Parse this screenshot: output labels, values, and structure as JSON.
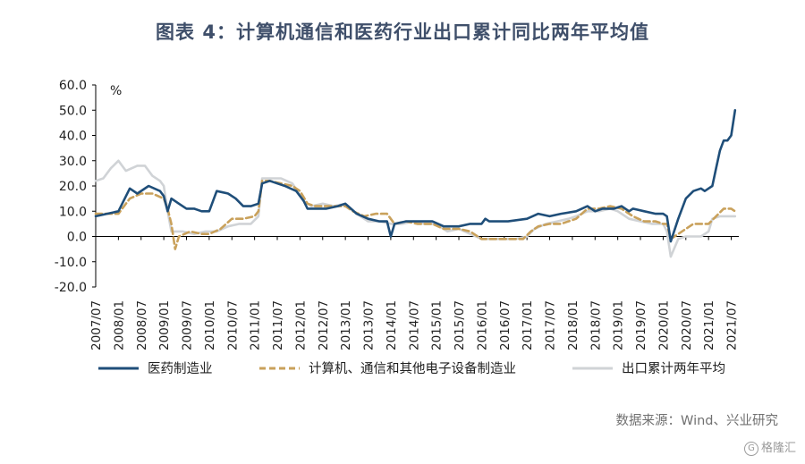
{
  "title": "图表 4：计算机通信和医药行业出口累计同比两年平均值",
  "source": "数据来源：Wind、兴业研究",
  "watermark": "格隆汇",
  "chart_data": {
    "type": "line",
    "ylabel": "%",
    "ylim": [
      -20,
      60
    ],
    "yticks": [
      -20,
      -10,
      0,
      10,
      20,
      30,
      40,
      50,
      60
    ],
    "ytick_labels": [
      "-20.0",
      "-10.0",
      "0.0",
      "10.0",
      "20.0",
      "30.0",
      "40.0",
      "50.0",
      "60.0"
    ],
    "xlim": [
      "2007-07",
      "2021-09"
    ],
    "xticks": [
      "2007/07",
      "2008/01",
      "2008/07",
      "2009/01",
      "2009/07",
      "2010/01",
      "2010/07",
      "2011/01",
      "2011/07",
      "2012/01",
      "2012/07",
      "2013/01",
      "2013/07",
      "2014/01",
      "2014/07",
      "2015/01",
      "2015/07",
      "2016/01",
      "2016/07",
      "2017/01",
      "2017/07",
      "2018/01",
      "2018/07",
      "2019/01",
      "2019/07",
      "2020/01",
      "2020/07",
      "2021/01",
      "2021/07"
    ],
    "grid": false,
    "legend_position": "bottom",
    "series": [
      {
        "name": "医药制造业",
        "color": "#1f4e79",
        "style": "solid",
        "points": [
          [
            "2007-07",
            8
          ],
          [
            "2007-10",
            9
          ],
          [
            "2008-01",
            10
          ],
          [
            "2008-04",
            19
          ],
          [
            "2008-06",
            17
          ],
          [
            "2008-09",
            20
          ],
          [
            "2008-12",
            18
          ],
          [
            "2009-01",
            16
          ],
          [
            "2009-02",
            10
          ],
          [
            "2009-03",
            15
          ],
          [
            "2009-05",
            13
          ],
          [
            "2009-07",
            11
          ],
          [
            "2009-09",
            11
          ],
          [
            "2009-11",
            10
          ],
          [
            "2010-01",
            10
          ],
          [
            "2010-03",
            18
          ],
          [
            "2010-06",
            17
          ],
          [
            "2010-08",
            15
          ],
          [
            "2010-10",
            12
          ],
          [
            "2010-12",
            12
          ],
          [
            "2011-02",
            13
          ],
          [
            "2011-03",
            21
          ],
          [
            "2011-05",
            22
          ],
          [
            "2011-07",
            21
          ],
          [
            "2011-09",
            20
          ],
          [
            "2011-12",
            18
          ],
          [
            "2012-02",
            14
          ],
          [
            "2012-03",
            11
          ],
          [
            "2012-05",
            11
          ],
          [
            "2012-08",
            11
          ],
          [
            "2012-11",
            12
          ],
          [
            "2013-01",
            13
          ],
          [
            "2013-04",
            9
          ],
          [
            "2013-07",
            7
          ],
          [
            "2013-10",
            6
          ],
          [
            "2013-12",
            6
          ],
          [
            "2014-01",
            0
          ],
          [
            "2014-02",
            5
          ],
          [
            "2014-05",
            6
          ],
          [
            "2014-08",
            6
          ],
          [
            "2014-12",
            6
          ],
          [
            "2015-03",
            4
          ],
          [
            "2015-07",
            4
          ],
          [
            "2015-10",
            5
          ],
          [
            "2015-12",
            5
          ],
          [
            "2016-01",
            5
          ],
          [
            "2016-02",
            7
          ],
          [
            "2016-03",
            6
          ],
          [
            "2016-08",
            6
          ],
          [
            "2017-01",
            7
          ],
          [
            "2017-04",
            9
          ],
          [
            "2017-07",
            8
          ],
          [
            "2017-10",
            9
          ],
          [
            "2018-02",
            10
          ],
          [
            "2018-05",
            12
          ],
          [
            "2018-07",
            10
          ],
          [
            "2018-09",
            11
          ],
          [
            "2018-12",
            11
          ],
          [
            "2019-02",
            12
          ],
          [
            "2019-04",
            10
          ],
          [
            "2019-05",
            11
          ],
          [
            "2019-08",
            10
          ],
          [
            "2019-11",
            9
          ],
          [
            "2020-01",
            9
          ],
          [
            "2020-02",
            8
          ],
          [
            "2020-03",
            -2
          ],
          [
            "2020-05",
            7
          ],
          [
            "2020-07",
            15
          ],
          [
            "2020-09",
            18
          ],
          [
            "2020-11",
            19
          ],
          [
            "2020-12",
            18
          ],
          [
            "2021-01",
            19
          ],
          [
            "2021-02",
            20
          ],
          [
            "2021-03",
            27
          ],
          [
            "2021-04",
            34
          ],
          [
            "2021-05",
            38
          ],
          [
            "2021-06",
            38
          ],
          [
            "2021-07",
            40
          ],
          [
            "2021-08",
            50
          ]
        ]
      },
      {
        "name": "计算机、通信和其他电子设备制造业",
        "color": "#c9a15b",
        "style": "dashed",
        "points": [
          [
            "2007-07",
            9
          ],
          [
            "2007-10",
            9
          ],
          [
            "2008-01",
            9
          ],
          [
            "2008-04",
            15
          ],
          [
            "2008-07",
            17
          ],
          [
            "2008-10",
            17
          ],
          [
            "2009-01",
            15
          ],
          [
            "2009-02",
            11
          ],
          [
            "2009-03",
            5
          ],
          [
            "2009-04",
            -5
          ],
          [
            "2009-05",
            0
          ],
          [
            "2009-08",
            2
          ],
          [
            "2009-11",
            1
          ],
          [
            "2010-01",
            1
          ],
          [
            "2010-04",
            3
          ],
          [
            "2010-07",
            7
          ],
          [
            "2010-10",
            7
          ],
          [
            "2011-01",
            8
          ],
          [
            "2011-02",
            10
          ],
          [
            "2011-03",
            22
          ],
          [
            "2011-05",
            22
          ],
          [
            "2011-08",
            21
          ],
          [
            "2011-11",
            20
          ],
          [
            "2012-01",
            18
          ],
          [
            "2012-03",
            13
          ],
          [
            "2012-05",
            12
          ],
          [
            "2012-08",
            12
          ],
          [
            "2012-11",
            12
          ],
          [
            "2013-01",
            12
          ],
          [
            "2013-03",
            10
          ],
          [
            "2013-06",
            8
          ],
          [
            "2013-09",
            9
          ],
          [
            "2013-12",
            9
          ],
          [
            "2014-02",
            5
          ],
          [
            "2014-05",
            6
          ],
          [
            "2014-08",
            5
          ],
          [
            "2014-12",
            5
          ],
          [
            "2015-03",
            3
          ],
          [
            "2015-07",
            3
          ],
          [
            "2015-10",
            2
          ],
          [
            "2016-01",
            -1
          ],
          [
            "2016-06",
            -1
          ],
          [
            "2016-12",
            -1
          ],
          [
            "2017-02",
            2
          ],
          [
            "2017-04",
            4
          ],
          [
            "2017-07",
            5
          ],
          [
            "2017-10",
            5
          ],
          [
            "2018-02",
            7
          ],
          [
            "2018-05",
            11
          ],
          [
            "2018-08",
            11
          ],
          [
            "2018-11",
            12
          ],
          [
            "2019-02",
            11
          ],
          [
            "2019-05",
            8
          ],
          [
            "2019-08",
            6
          ],
          [
            "2019-11",
            6
          ],
          [
            "2020-01",
            5
          ],
          [
            "2020-02",
            5
          ],
          [
            "2020-03",
            -1
          ],
          [
            "2020-05",
            1
          ],
          [
            "2020-07",
            3
          ],
          [
            "2020-09",
            5
          ],
          [
            "2020-11",
            5
          ],
          [
            "2021-01",
            5
          ],
          [
            "2021-03",
            8
          ],
          [
            "2021-05",
            11
          ],
          [
            "2021-07",
            11
          ],
          [
            "2021-08",
            10
          ]
        ]
      },
      {
        "name": "出口累计两年平均",
        "color": "#d0d3d6",
        "style": "solid",
        "points": [
          [
            "2007-07",
            22
          ],
          [
            "2007-09",
            23
          ],
          [
            "2007-11",
            27
          ],
          [
            "2008-01",
            30
          ],
          [
            "2008-03",
            26
          ],
          [
            "2008-06",
            28
          ],
          [
            "2008-08",
            28
          ],
          [
            "2008-10",
            24
          ],
          [
            "2008-12",
            22
          ],
          [
            "2009-01",
            20
          ],
          [
            "2009-02",
            10
          ],
          [
            "2009-03",
            2
          ],
          [
            "2009-06",
            2
          ],
          [
            "2009-09",
            1
          ],
          [
            "2009-12",
            2
          ],
          [
            "2010-03",
            2
          ],
          [
            "2010-06",
            4
          ],
          [
            "2010-09",
            5
          ],
          [
            "2010-12",
            5
          ],
          [
            "2011-02",
            8
          ],
          [
            "2011-03",
            23
          ],
          [
            "2011-05",
            23
          ],
          [
            "2011-08",
            23
          ],
          [
            "2011-11",
            21
          ],
          [
            "2012-02",
            14
          ],
          [
            "2012-04",
            12
          ],
          [
            "2012-07",
            13
          ],
          [
            "2012-10",
            12
          ],
          [
            "2013-01",
            13
          ],
          [
            "2013-04",
            9
          ],
          [
            "2013-07",
            6
          ],
          [
            "2013-10",
            6
          ],
          [
            "2014-01",
            5
          ],
          [
            "2014-04",
            5
          ],
          [
            "2014-07",
            6
          ],
          [
            "2014-10",
            5
          ],
          [
            "2015-01",
            5
          ],
          [
            "2015-04",
            2
          ],
          [
            "2015-07",
            3
          ],
          [
            "2015-10",
            1
          ],
          [
            "2016-01",
            -1
          ],
          [
            "2016-04",
            -1
          ],
          [
            "2016-07",
            -1
          ],
          [
            "2016-10",
            -1
          ],
          [
            "2017-01",
            0
          ],
          [
            "2017-03",
            3
          ],
          [
            "2017-06",
            5
          ],
          [
            "2017-09",
            6
          ],
          [
            "2017-12",
            7
          ],
          [
            "2018-02",
            8
          ],
          [
            "2018-05",
            10
          ],
          [
            "2018-08",
            10
          ],
          [
            "2018-11",
            11
          ],
          [
            "2019-01",
            10
          ],
          [
            "2019-04",
            7
          ],
          [
            "2019-07",
            6
          ],
          [
            "2019-10",
            5
          ],
          [
            "2020-01",
            5
          ],
          [
            "2020-02",
            2
          ],
          [
            "2020-03",
            -8
          ],
          [
            "2020-05",
            -1
          ],
          [
            "2020-07",
            0
          ],
          [
            "2020-09",
            0
          ],
          [
            "2020-11",
            0
          ],
          [
            "2021-01",
            2
          ],
          [
            "2021-02",
            7
          ],
          [
            "2021-04",
            8
          ],
          [
            "2021-06",
            8
          ],
          [
            "2021-08",
            8
          ]
        ]
      }
    ]
  }
}
